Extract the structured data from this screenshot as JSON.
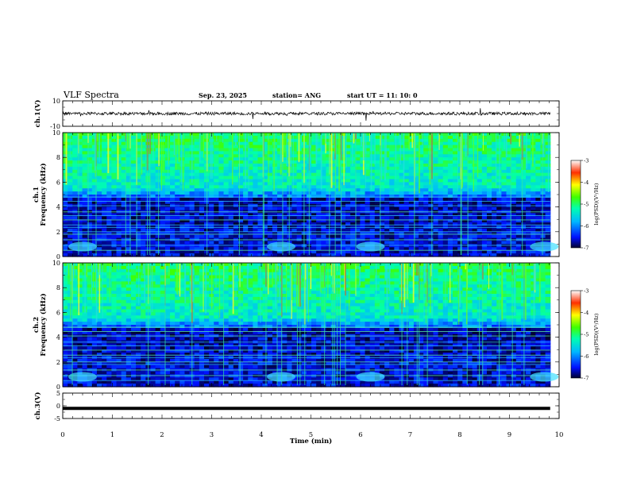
{
  "header": {
    "title": "VLF Spectra",
    "date": "Sep. 23, 2025",
    "station": "station= ANG",
    "start": "start  UT =   11: 10: 0"
  },
  "chart_data": [
    {
      "name": "ch1-waveform",
      "type": "line",
      "ylabel": "ch.1(V)",
      "ylim": [
        -10,
        10
      ],
      "yticks": [
        "10",
        "-10"
      ],
      "baseline": 0
    },
    {
      "name": "ch1-spectrogram",
      "type": "heatmap",
      "ylabel": "ch.1\nFrequency (kHz)",
      "ylabel_lines": [
        "ch.1",
        "Frequency (kHz)"
      ],
      "ylim": [
        0,
        10
      ],
      "yticks": [
        "0",
        "2",
        "4",
        "6",
        "8",
        "10"
      ],
      "colorbar": {
        "label": "log(PSD)(V²/Hz)",
        "range": [
          -7,
          -3
        ],
        "ticks": [
          "-3",
          "-4",
          "-5",
          "-6",
          "-7"
        ]
      }
    },
    {
      "name": "ch2-spectrogram",
      "type": "heatmap",
      "ylabel": "ch.2\nFrequency (kHz)",
      "ylabel_lines": [
        "ch.2",
        "Frequency (kHz)"
      ],
      "ylim": [
        0,
        10
      ],
      "yticks": [
        "0",
        "2",
        "4",
        "6",
        "8",
        "10"
      ],
      "colorbar": {
        "label": "log(PSD)(V²/Hz)",
        "range": [
          -7,
          -3
        ],
        "ticks": [
          "-3",
          "-4",
          "-5",
          "-6",
          "-7"
        ]
      }
    },
    {
      "name": "ch3-waveform",
      "type": "line",
      "ylabel": "ch.3(V)",
      "ylim": [
        -5,
        5
      ],
      "yticks": [
        "5",
        "0",
        "-5"
      ],
      "baseline": -1
    }
  ],
  "xaxis": {
    "label": "Time (min)",
    "range": [
      0,
      10
    ],
    "ticks": [
      "0",
      "1",
      "2",
      "3",
      "4",
      "5",
      "6",
      "7",
      "8",
      "9",
      "10"
    ]
  },
  "colors": {
    "axis": "#000000",
    "background": "#ffffff"
  }
}
